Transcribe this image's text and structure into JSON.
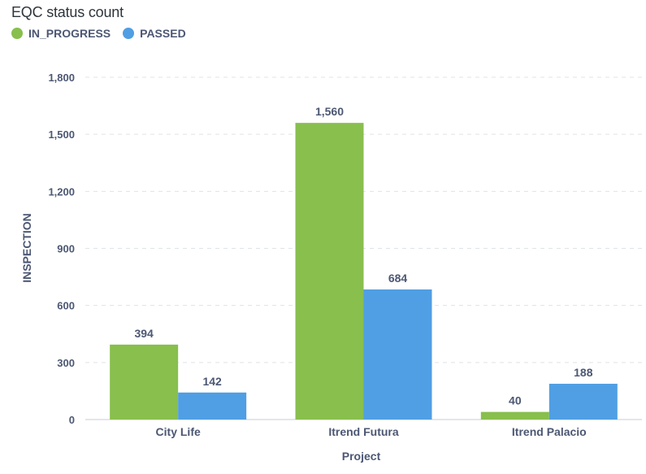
{
  "chart_data": {
    "type": "bar",
    "title": "EQC status count",
    "xlabel": "Project",
    "ylabel": "INSPECTION",
    "categories": [
      "City Life",
      "Itrend Futura",
      "Itrend Palacio"
    ],
    "series": [
      {
        "name": "IN_PROGRESS",
        "color": "#88bf4d",
        "values": [
          394,
          1560,
          40
        ],
        "labels": [
          "394",
          "1,560",
          "40"
        ]
      },
      {
        "name": "PASSED",
        "color": "#509ee3",
        "values": [
          142,
          684,
          188
        ],
        "labels": [
          "142",
          "684",
          "188"
        ]
      }
    ],
    "ylim": [
      0,
      1800
    ],
    "yticks": [
      0,
      300,
      600,
      900,
      1200,
      1500,
      1800
    ],
    "ytick_labels": [
      "0",
      "300",
      "600",
      "900",
      "1,200",
      "1,500",
      "1,800"
    ],
    "grid": true,
    "legend_position": "top-left"
  }
}
